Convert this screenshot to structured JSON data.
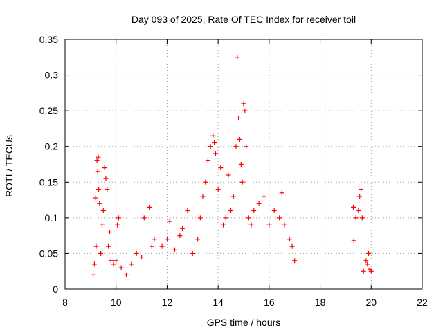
{
  "chart_data": {
    "type": "scatter",
    "title": "Day 093 of 2025, Rate Of TEC Index for receiver toil",
    "xlabel": "GPS time / hours",
    "ylabel": "ROTI / TECUs",
    "xlim": [
      8,
      22
    ],
    "ylim": [
      0,
      0.35
    ],
    "x_ticks": [
      8,
      10,
      12,
      14,
      16,
      18,
      20,
      22
    ],
    "y_ticks": [
      0,
      0.05,
      0.1,
      0.15,
      0.2,
      0.25,
      0.3,
      0.35
    ],
    "x_tick_labels": [
      "8",
      "10",
      "12",
      "14",
      "16",
      "18",
      "20",
      "22"
    ],
    "y_tick_labels": [
      "0",
      "0.05",
      "0.1",
      "0.15",
      "0.2",
      "0.25",
      "0.3",
      "0.35"
    ],
    "grid": true,
    "marker": "+",
    "color": "#ff0000",
    "series": [
      {
        "name": "ROTI",
        "points": [
          [
            9.1,
            0.02
          ],
          [
            9.15,
            0.035
          ],
          [
            9.2,
            0.128
          ],
          [
            9.22,
            0.06
          ],
          [
            9.25,
            0.18
          ],
          [
            9.28,
            0.165
          ],
          [
            9.3,
            0.185
          ],
          [
            9.32,
            0.14
          ],
          [
            9.35,
            0.12
          ],
          [
            9.4,
            0.05
          ],
          [
            9.45,
            0.09
          ],
          [
            9.5,
            0.11
          ],
          [
            9.55,
            0.17
          ],
          [
            9.6,
            0.155
          ],
          [
            9.65,
            0.14
          ],
          [
            9.7,
            0.06
          ],
          [
            9.75,
            0.08
          ],
          [
            9.8,
            0.04
          ],
          [
            9.9,
            0.035
          ],
          [
            10.0,
            0.04
          ],
          [
            10.05,
            0.09
          ],
          [
            10.1,
            0.1
          ],
          [
            10.2,
            0.03
          ],
          [
            10.4,
            0.02
          ],
          [
            10.6,
            0.035
          ],
          [
            10.8,
            0.05
          ],
          [
            11.0,
            0.045
          ],
          [
            11.1,
            0.1
          ],
          [
            11.3,
            0.115
          ],
          [
            11.4,
            0.06
          ],
          [
            11.5,
            0.07
          ],
          [
            11.8,
            0.06
          ],
          [
            12.0,
            0.07
          ],
          [
            12.1,
            0.095
          ],
          [
            12.3,
            0.055
          ],
          [
            12.5,
            0.075
          ],
          [
            12.6,
            0.085
          ],
          [
            12.8,
            0.11
          ],
          [
            13.0,
            0.05
          ],
          [
            13.2,
            0.07
          ],
          [
            13.3,
            0.1
          ],
          [
            13.4,
            0.13
          ],
          [
            13.5,
            0.15
          ],
          [
            13.6,
            0.18
          ],
          [
            13.7,
            0.2
          ],
          [
            13.8,
            0.215
          ],
          [
            13.85,
            0.205
          ],
          [
            13.9,
            0.19
          ],
          [
            14.0,
            0.14
          ],
          [
            14.1,
            0.17
          ],
          [
            14.2,
            0.09
          ],
          [
            14.3,
            0.1
          ],
          [
            14.4,
            0.16
          ],
          [
            14.5,
            0.11
          ],
          [
            14.6,
            0.13
          ],
          [
            14.7,
            0.2
          ],
          [
            14.75,
            0.325
          ],
          [
            14.8,
            0.24
          ],
          [
            14.85,
            0.21
          ],
          [
            14.9,
            0.175
          ],
          [
            14.95,
            0.15
          ],
          [
            15.0,
            0.26
          ],
          [
            15.05,
            0.25
          ],
          [
            15.1,
            0.2
          ],
          [
            15.2,
            0.1
          ],
          [
            15.3,
            0.09
          ],
          [
            15.4,
            0.11
          ],
          [
            15.6,
            0.12
          ],
          [
            15.8,
            0.13
          ],
          [
            16.0,
            0.09
          ],
          [
            16.2,
            0.11
          ],
          [
            16.4,
            0.1
          ],
          [
            16.5,
            0.135
          ],
          [
            16.6,
            0.09
          ],
          [
            16.8,
            0.07
          ],
          [
            16.9,
            0.06
          ],
          [
            17.0,
            0.04
          ],
          [
            19.3,
            0.115
          ],
          [
            19.32,
            0.068
          ],
          [
            19.4,
            0.1
          ],
          [
            19.5,
            0.11
          ],
          [
            19.55,
            0.13
          ],
          [
            19.6,
            0.14
          ],
          [
            19.65,
            0.1
          ],
          [
            19.7,
            0.025
          ],
          [
            19.8,
            0.04
          ],
          [
            19.85,
            0.035
          ],
          [
            19.9,
            0.05
          ],
          [
            19.95,
            0.028
          ],
          [
            20.0,
            0.025
          ]
        ]
      }
    ]
  }
}
